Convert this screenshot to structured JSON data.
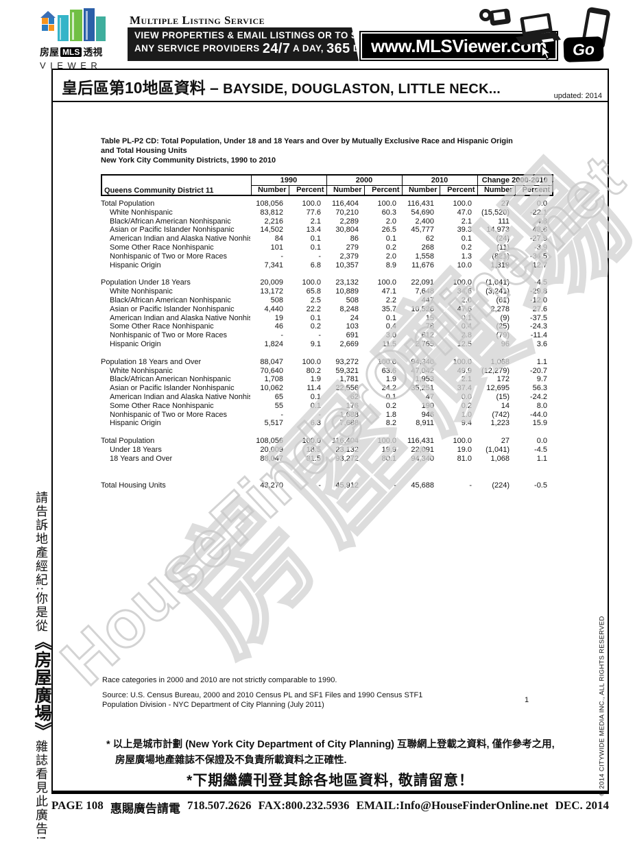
{
  "banner": {
    "logo": {
      "zh_left": "房屋",
      "mls": "MLS",
      "zh_right": "透視",
      "viewer": "VIEWER"
    },
    "mls_service": "Multiple Listing Service",
    "bar_line1": "VIEW PROPERTIES & EMAIL LISTINGS OR TO SEARCH",
    "bar_line2_pre": "ANY SERVICE PROVIDERS ",
    "bar_line2_big1": "24/7",
    "bar_line2_mid": " A DAY, ",
    "bar_line2_big2": "365",
    "bar_line2_end": " DAYS",
    "url": "www.MLSViewer.com",
    "go": "Go"
  },
  "page": {
    "title_zh": "皇后區第10地區資料",
    "title_dash": " – ",
    "title_en": "BAYSIDE, DOUGLASTON, LITTLE NECK...",
    "updated": "updated: 2014"
  },
  "table": {
    "caption_line1": "Table PL-P2 CD:  Total Population, Under 18 and 18 Years and Over by Mutually Exclusive Race and Hispanic Origin",
    "caption_line2": "and Total Housing Units",
    "caption_line3": "New York City Community Districts, 1990 to 2010",
    "row_header": "Queens Community District 11",
    "col_groups": [
      "1990",
      "2000",
      "2010",
      "Change 2000-2010"
    ],
    "sub_cols": [
      "Number",
      "Percent"
    ],
    "sections": [
      {
        "big_gap": false,
        "rows": [
          {
            "label": "Total Population",
            "indent": false,
            "values": [
              "108,056",
              "100.0",
              "116,404",
              "100.0",
              "116,431",
              "100.0",
              "27",
              "0.0"
            ]
          },
          {
            "label": "White Nonhispanic",
            "indent": true,
            "values": [
              "83,812",
              "77.6",
              "70,210",
              "60.3",
              "54,690",
              "47.0",
              "(15,520)",
              "-22.1"
            ]
          },
          {
            "label": "Black/African American Nonhispanic",
            "indent": true,
            "values": [
              "2,216",
              "2.1",
              "2,289",
              "2.0",
              "2,400",
              "2.1",
              "111",
              "4.8"
            ]
          },
          {
            "label": "Asian or Pacific Islander Nonhispanic",
            "indent": true,
            "values": [
              "14,502",
              "13.4",
              "30,804",
              "26.5",
              "45,777",
              "39.3",
              "14,973",
              "48.6"
            ]
          },
          {
            "label": "American Indian and Alaska Native Nonhispanic",
            "indent": true,
            "values": [
              "84",
              "0.1",
              "86",
              "0.1",
              "62",
              "0.1",
              "(24)",
              "-27.9"
            ]
          },
          {
            "label": "Some Other Race Nonhispanic",
            "indent": true,
            "values": [
              "101",
              "0.1",
              "279",
              "0.2",
              "268",
              "0.2",
              "(11)",
              "-3.9"
            ]
          },
          {
            "label": "Nonhispanic of Two or More Races",
            "indent": true,
            "values": [
              "-",
              "-",
              "2,379",
              "2.0",
              "1,558",
              "1.3",
              "(821)",
              "-34.5"
            ]
          },
          {
            "label": "Hispanic Origin",
            "indent": true,
            "values": [
              "7,341",
              "6.8",
              "10,357",
              "8.9",
              "11,676",
              "10.0",
              "1,319",
              "12.7"
            ]
          }
        ]
      },
      {
        "big_gap": false,
        "rows": [
          {
            "label": "Population Under 18 Years",
            "indent": false,
            "values": [
              "20,009",
              "100.0",
              "23,132",
              "100.0",
              "22,091",
              "100.0",
              "(1,041)",
              "-4.5"
            ]
          },
          {
            "label": "White Nonhispanic",
            "indent": true,
            "values": [
              "13,172",
              "65.8",
              "10,889",
              "47.1",
              "7,648",
              "34.6",
              "(3,241)",
              "-29.8"
            ]
          },
          {
            "label": "Black/African American Nonhispanic",
            "indent": true,
            "values": [
              "508",
              "2.5",
              "508",
              "2.2",
              "447",
              "2.0",
              "(61)",
              "-12.0"
            ]
          },
          {
            "label": "Asian or Pacific Islander Nonhispanic",
            "indent": true,
            "values": [
              "4,440",
              "22.2",
              "8,248",
              "35.7",
              "10,526",
              "47.6",
              "2,278",
              "27.6"
            ]
          },
          {
            "label": "American Indian and Alaska Native Nonhispanic",
            "indent": true,
            "values": [
              "19",
              "0.1",
              "24",
              "0.1",
              "15",
              "0.1",
              "(9)",
              "-37.5"
            ]
          },
          {
            "label": "Some Other Race Nonhispanic",
            "indent": true,
            "values": [
              "46",
              "0.2",
              "103",
              "0.4",
              "78",
              "0.4",
              "(25)",
              "-24.3"
            ]
          },
          {
            "label": "Nonhispanic of Two or More Races",
            "indent": true,
            "values": [
              "-",
              "-",
              "691",
              "3.0",
              "612",
              "2.8",
              "(79)",
              "-11.4"
            ]
          },
          {
            "label": "Hispanic Origin",
            "indent": true,
            "values": [
              "1,824",
              "9.1",
              "2,669",
              "11.5",
              "2,765",
              "12.5",
              "96",
              "3.6"
            ]
          }
        ]
      },
      {
        "big_gap": false,
        "rows": [
          {
            "label": "Population 18 Years and Over",
            "indent": false,
            "values": [
              "88,047",
              "100.0",
              "93,272",
              "100.0",
              "94,340",
              "100.0",
              "1,068",
              "1.1"
            ]
          },
          {
            "label": "White Nonhispanic",
            "indent": true,
            "values": [
              "70,640",
              "80.2",
              "59,321",
              "63.6",
              "47,042",
              "49.9",
              "(12,279)",
              "-20.7"
            ]
          },
          {
            "label": "Black/African American Nonhispanic",
            "indent": true,
            "values": [
              "1,708",
              "1.9",
              "1,781",
              "1.9",
              "1,953",
              "2.1",
              "172",
              "9.7"
            ]
          },
          {
            "label": "Asian or Pacific Islander Nonhispanic",
            "indent": true,
            "values": [
              "10,062",
              "11.4",
              "22,556",
              "24.2",
              "35,251",
              "37.4",
              "12,695",
              "56.3"
            ]
          },
          {
            "label": "American Indian and Alaska Native Nonhispanic",
            "indent": true,
            "values": [
              "65",
              "0.1",
              "62",
              "0.1",
              "47",
              "0.0",
              "(15)",
              "-24.2"
            ]
          },
          {
            "label": "Some Other Race Nonhispanic",
            "indent": true,
            "values": [
              "55",
              "0.1",
              "176",
              "0.2",
              "190",
              "0.2",
              "14",
              "8.0"
            ]
          },
          {
            "label": "Nonhispanic of Two or More Races",
            "indent": true,
            "values": [
              "-",
              "-",
              "1,688",
              "1.8",
              "946",
              "1.0",
              "(742)",
              "-44.0"
            ]
          },
          {
            "label": "Hispanic Origin",
            "indent": true,
            "values": [
              "5,517",
              "6.3",
              "7,688",
              "8.2",
              "8,911",
              "9.4",
              "1,223",
              "15.9"
            ]
          }
        ]
      },
      {
        "big_gap": false,
        "rows": [
          {
            "label": "Total Population",
            "indent": false,
            "values": [
              "108,056",
              "100.0",
              "116,404",
              "100.0",
              "116,431",
              "100.0",
              "27",
              "0.0"
            ]
          },
          {
            "label": "Under 18 Years",
            "indent": true,
            "values": [
              "20,009",
              "18.5",
              "23,132",
              "19.9",
              "22,091",
              "19.0",
              "(1,041)",
              "-4.5"
            ]
          },
          {
            "label": "18 Years and Over",
            "indent": true,
            "values": [
              "88,047",
              "81.5",
              "93,272",
              "80.1",
              "94,340",
              "81.0",
              "1,068",
              "1.1"
            ]
          }
        ]
      },
      {
        "big_gap": true,
        "rows": [
          {
            "label": "Total Housing Units",
            "indent": false,
            "values": [
              "43,270",
              "-",
              "45,912",
              "-",
              "45,688",
              "-",
              "(224)",
              "-0.5"
            ]
          }
        ]
      }
    ]
  },
  "notes": {
    "comparability": "Race categories in 2000 and 2010 are not strictly comparable to 1990.",
    "source_line1": "Source:  U.S. Census Bureau, 2000 and 2010 Census PL and SF1 Files and 1990 Census STF1",
    "source_line2": "Population Division - NYC Department of City Planning (July 2011)",
    "page_number": "1"
  },
  "disclaimer": {
    "line1": "* 以上是城市計劃 (New York City Department of City Planning) 互聯網上登載之資料, 僅作參考之用,",
    "line2": "房屋廣場地產雜誌不保證及不負責所載資料之正確性.",
    "highlight": "*下期繼續刊登其餘各地區資料, 敬請留意！"
  },
  "footer": {
    "page": "PAGE 108",
    "ad_zh": "惠賜廣告請電",
    "phone": "718.507.2626",
    "fax": "FAX:800.232.5936",
    "email": "EMAIL:Info@HouseFinderOnline.net",
    "date": "DEC. 2014"
  },
  "sidebar_left": {
    "pre": "請告訴地產經紀:你是從",
    "brand": "《房屋廣場》",
    "post": "雜誌看見此廣告!"
  },
  "copyright": "© 2014 CITYWIDE MEDIA INC., ALL RIGHTS RESERVED",
  "watermark": {
    "en": "HouseFinderOnline.net",
    "zh": "房屋廣場"
  }
}
